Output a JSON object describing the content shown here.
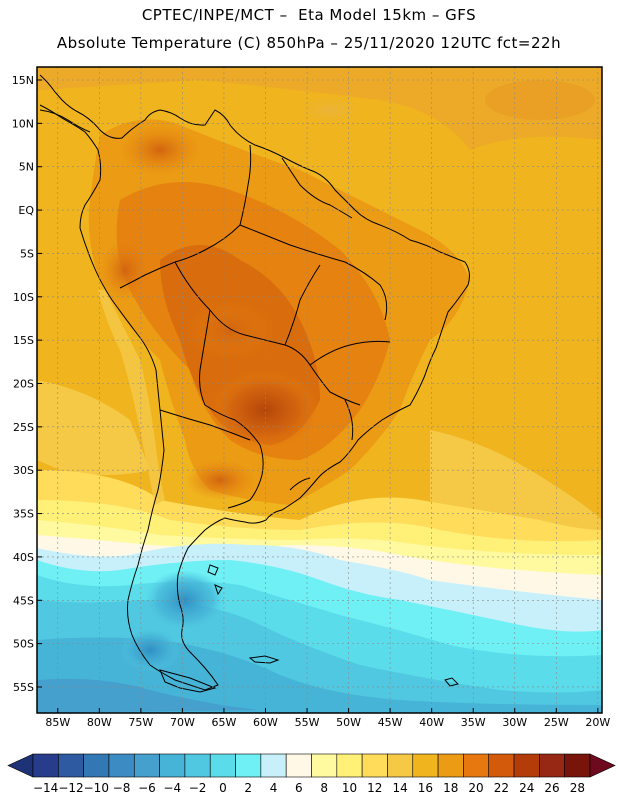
{
  "header": {
    "title_line1": "CPTEC/INPE/MCT –  Eta Model 15km – GFS",
    "title_line2": "Absolute Temperature (C) 850hPa – 25/11/2020 12UTC fct=22h"
  },
  "map": {
    "region": "South America",
    "lat_labels": [
      "15N",
      "10N",
      "5N",
      "EQ",
      "5S",
      "10S",
      "15S",
      "20S",
      "25S",
      "30S",
      "35S",
      "40S",
      "45S",
      "50S",
      "55S"
    ],
    "lon_labels": [
      "85W",
      "80W",
      "75W",
      "70W",
      "65W",
      "60W",
      "55W",
      "50W",
      "45W",
      "40W",
      "35W",
      "30W",
      "25W",
      "20W"
    ],
    "lat_values": [
      15,
      10,
      5,
      0,
      -5,
      -10,
      -15,
      -20,
      -25,
      -30,
      -35,
      -40,
      -45,
      -50,
      -55
    ],
    "lon_values": [
      -85,
      -80,
      -75,
      -70,
      -65,
      -60,
      -55,
      -50,
      -45,
      -40,
      -35,
      -30,
      -25,
      -20
    ]
  },
  "colorbar": {
    "labels": [
      "-14",
      "-12",
      "-10",
      "-8",
      "-6",
      "-4",
      "-2",
      "0",
      "2",
      "4",
      "6",
      "8",
      "10",
      "12",
      "14",
      "16",
      "18",
      "20",
      "22",
      "24",
      "26",
      "28"
    ],
    "colors": [
      "#283c8c",
      "#2d5aa0",
      "#3278b4",
      "#3c8cc3",
      "#46a0cd",
      "#46b4d7",
      "#50c8e1",
      "#5adceb",
      "#6ef0f5",
      "#c8f0fa",
      "#fff8e6",
      "#fffaa0",
      "#fff078",
      "#ffdc5a",
      "#f5c846",
      "#f0b41e",
      "#eb9b14",
      "#e6780f",
      "#d25a0a",
      "#b43c0a",
      "#962814",
      "#78140a"
    ],
    "left_arrow_color": "#1e3278",
    "right_arrow_color": "#6e0a1e"
  }
}
